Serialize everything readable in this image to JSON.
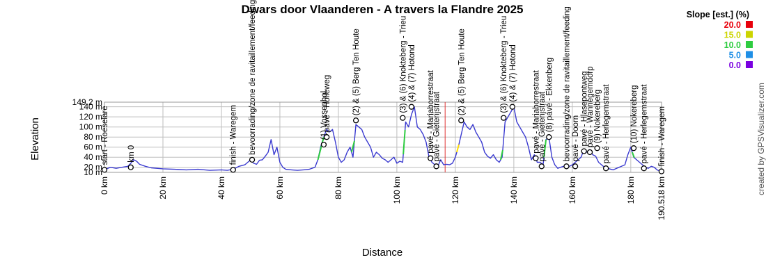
{
  "chart_data": {
    "type": "area",
    "title": "Dwars door Vlaanderen - A travers la Flandre 2025",
    "xlabel": "Distance",
    "ylabel": "Elevation",
    "xlim": [
      0,
      190.518
    ],
    "ylim": [
      10,
      149.2
    ],
    "x_ticks": [
      {
        "value": 0,
        "label": "0 km"
      },
      {
        "value": 20,
        "label": "20 km"
      },
      {
        "value": 40,
        "label": "40 km"
      },
      {
        "value": 60,
        "label": "60 km"
      },
      {
        "value": 80,
        "label": "80 km"
      },
      {
        "value": 100,
        "label": "100 km"
      },
      {
        "value": 120,
        "label": "120 km"
      },
      {
        "value": 140,
        "label": "140 km"
      },
      {
        "value": 160,
        "label": "160 km"
      },
      {
        "value": 180,
        "label": "180 km"
      },
      {
        "value": 190.518,
        "label": "190.518 km"
      }
    ],
    "y_ticks": [
      {
        "value": 10,
        "label": "10 m"
      },
      {
        "value": 20,
        "label": "20 m"
      },
      {
        "value": 40,
        "label": "40 m"
      },
      {
        "value": 60,
        "label": "60 m"
      },
      {
        "value": 80,
        "label": "80 m"
      },
      {
        "value": 100,
        "label": "100 m"
      },
      {
        "value": 120,
        "label": "120 m"
      },
      {
        "value": 140,
        "label": "140 m"
      },
      {
        "value": 149.2,
        "label": "149.2 m"
      }
    ],
    "grid": true,
    "marker_line_x": 116.5,
    "profile": {
      "x": [
        0,
        2,
        4,
        6,
        8,
        9,
        10,
        11,
        12,
        14,
        16,
        20,
        24,
        28,
        32,
        36,
        40,
        42,
        44,
        46,
        48,
        49,
        50,
        51,
        52,
        53,
        54,
        55,
        56,
        57,
        58,
        59,
        60,
        61,
        62,
        64,
        66,
        68,
        70,
        72,
        73,
        74,
        75,
        76,
        77,
        78,
        79,
        80,
        81,
        82,
        83,
        84,
        85,
        86,
        87,
        88,
        89,
        90,
        91,
        92,
        93,
        94,
        95,
        96,
        97,
        98,
        99,
        100,
        101,
        102,
        103,
        104,
        105,
        106,
        107,
        108,
        109,
        110,
        111,
        112,
        113,
        114,
        115,
        116,
        117,
        118,
        119,
        120,
        121,
        122,
        123,
        124,
        125,
        126,
        127,
        128,
        129,
        130,
        131,
        132,
        133,
        134,
        135,
        136,
        137,
        138,
        139,
        140,
        141,
        142,
        143,
        144,
        145,
        146,
        147,
        148,
        149,
        150,
        151,
        152,
        153,
        154,
        155,
        156,
        157,
        158,
        159,
        160,
        161,
        162,
        163,
        164,
        165,
        166,
        167,
        168,
        169,
        170,
        171,
        172,
        174,
        176,
        178,
        179,
        180,
        181,
        182,
        183,
        184,
        185,
        186,
        187,
        188,
        189,
        190,
        190.518
      ],
      "y": [
        15,
        20,
        18,
        20,
        22,
        28,
        35,
        32,
        26,
        22,
        19,
        17,
        16,
        15,
        16,
        14,
        15,
        14,
        16,
        22,
        25,
        30,
        35,
        28,
        26,
        34,
        35,
        42,
        50,
        75,
        45,
        60,
        30,
        20,
        16,
        15,
        14,
        15,
        16,
        20,
        35,
        62,
        80,
        95,
        90,
        95,
        70,
        40,
        30,
        35,
        50,
        60,
        40,
        105,
        100,
        95,
        80,
        70,
        60,
        40,
        50,
        45,
        38,
        35,
        30,
        35,
        40,
        28,
        32,
        30,
        110,
        100,
        125,
        140,
        100,
        95,
        85,
        70,
        40,
        30,
        25,
        22,
        35,
        25,
        26,
        25,
        28,
        40,
        60,
        85,
        110,
        100,
        95,
        105,
        90,
        80,
        70,
        50,
        42,
        38,
        45,
        35,
        30,
        40,
        110,
        120,
        130,
        140,
        110,
        100,
        90,
        80,
        60,
        35,
        45,
        30,
        30,
        25,
        75,
        80,
        40,
        25,
        18,
        20,
        22,
        20,
        22,
        25,
        30,
        35,
        40,
        55,
        50,
        55,
        45,
        42,
        30,
        25,
        20,
        18,
        15,
        20,
        25,
        45,
        60,
        40,
        35,
        30,
        25,
        20,
        18,
        22,
        20,
        15,
        12,
        10
      ]
    },
    "steep_segments": [
      {
        "x": [
          73,
          75
        ],
        "color": "#2ecc40"
      },
      {
        "x": [
          84.5,
          85.5
        ],
        "color": "#2ecc40"
      },
      {
        "x": [
          102.2,
          102.8
        ],
        "color": "#2ecc40"
      },
      {
        "x": [
          120.5,
          121.2
        ],
        "color": "#ffdc00"
      },
      {
        "x": [
          135.5,
          136.2
        ],
        "color": "#2ecc40"
      },
      {
        "x": [
          150.3,
          151
        ],
        "color": "#2ecc40"
      },
      {
        "x": [
          180.5,
          181.2
        ],
        "color": "#2ecc40"
      }
    ],
    "waypoints": [
      {
        "x": 0,
        "y": 15,
        "label": "start - Roeselare"
      },
      {
        "x": 9,
        "y": 20,
        "label": "km 0"
      },
      {
        "x": 44,
        "y": 15,
        "label": "finish - Waregem"
      },
      {
        "x": 50.5,
        "y": 35,
        "label": "bevoorrading/zone de ravitaillement/feeding"
      },
      {
        "x": 75,
        "y": 65,
        "label": "(1) Vossenhol"
      },
      {
        "x": 76,
        "y": 80,
        "label": "pavé - Holleweg"
      },
      {
        "x": 86,
        "y": 113,
        "label": "(2) & (5) Berg Ten Houte"
      },
      {
        "x": 102,
        "y": 118,
        "label": "(3) & (6) Knokteberg - Trieu"
      },
      {
        "x": 105,
        "y": 140,
        "label": "(4) & (7) Hotond"
      },
      {
        "x": 111.5,
        "y": 38,
        "label": "pavé - Mariaborrestraat"
      },
      {
        "x": 113.5,
        "y": 22,
        "label": "pavé - Gieterijstraat"
      },
      {
        "x": 122,
        "y": 113,
        "label": "(2) & (5) Berg Ten Houte"
      },
      {
        "x": 136.5,
        "y": 118,
        "label": "(3) & (6) Knokteberg - Trieu"
      },
      {
        "x": 139.5,
        "y": 140,
        "label": "(4) & (7) Hotond"
      },
      {
        "x": 147.5,
        "y": 38,
        "label": "pavé - Mariaborrestraat"
      },
      {
        "x": 149.5,
        "y": 22,
        "label": "pavé - Gieterijstraat"
      },
      {
        "x": 152,
        "y": 80,
        "label": "(8) pavé - Ekkenberg"
      },
      {
        "x": 158,
        "y": 22,
        "label": "bevoorrading/zone de ravitaillement/feeding"
      },
      {
        "x": 161,
        "y": 22,
        "label": "pavé - Doorn"
      },
      {
        "x": 164,
        "y": 52,
        "label": "pavé - Hlasepontweg"
      },
      {
        "x": 166,
        "y": 50,
        "label": "pavé - Wannegemdorp"
      },
      {
        "x": 168.5,
        "y": 58,
        "label": "(9) Nokereberg"
      },
      {
        "x": 171.5,
        "y": 18,
        "label": "pavé - Herlegemstraat"
      },
      {
        "x": 181,
        "y": 58,
        "label": "(10) Nokereberg"
      },
      {
        "x": 184.5,
        "y": 18,
        "label": "pavé - Herlegemstraat"
      },
      {
        "x": 190.5,
        "y": 12,
        "label": "finish - Waregem"
      }
    ],
    "legend": {
      "title": "Slope [est.] (%)",
      "placement": "top-right",
      "entries": [
        {
          "label": "20.0",
          "color": "#e8000b"
        },
        {
          "label": "15.0",
          "color": "#ccd400"
        },
        {
          "label": "10.0",
          "color": "#2ecc40"
        },
        {
          "label": "5.0",
          "color": "#1f8fe6"
        },
        {
          "label": "0.0",
          "color": "#7a00e0"
        }
      ]
    },
    "colors": {
      "profile_line": "#3a3ad0",
      "profile_line_alt": "#8a8a8a",
      "marker_line": "#e03030",
      "grid": "#bdbdbd"
    }
  },
  "credit": "created by GPSVisualizer.com"
}
